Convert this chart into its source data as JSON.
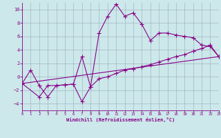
{
  "xlabel": "Windchill (Refroidissement éolien,°C)",
  "xlim": [
    0,
    23
  ],
  "ylim": [
    -5,
    11
  ],
  "yticks": [
    -4,
    -2,
    0,
    2,
    4,
    6,
    8,
    10
  ],
  "xticks": [
    0,
    1,
    2,
    3,
    4,
    5,
    6,
    7,
    8,
    9,
    10,
    11,
    12,
    13,
    14,
    15,
    16,
    17,
    18,
    19,
    20,
    21,
    22,
    23
  ],
  "background_color": "#cce8ea",
  "line_color": "#880088",
  "grid_color": "#99aabb",
  "line1_x": [
    0,
    1,
    2,
    3,
    4,
    5,
    6,
    7,
    8,
    9,
    10,
    11,
    12,
    13,
    14,
    15,
    16,
    17,
    18,
    19,
    20,
    21,
    22,
    23
  ],
  "line1_y": [
    -1.0,
    1.0,
    -1.3,
    -3.0,
    -1.3,
    -1.2,
    -1.1,
    -3.7,
    -1.5,
    6.5,
    9.0,
    10.8,
    9.0,
    9.5,
    7.8,
    5.4,
    6.5,
    6.5,
    6.2,
    6.0,
    5.8,
    4.7,
    4.5,
    3.0
  ],
  "line2_x": [
    0,
    2,
    3,
    4,
    5,
    6,
    7,
    8,
    9,
    10,
    11,
    12,
    13,
    14,
    15,
    16,
    17,
    18,
    19,
    20,
    21,
    22,
    23
  ],
  "line2_y": [
    -1.0,
    -3.0,
    -1.3,
    -1.3,
    -1.2,
    -1.1,
    3.0,
    -1.5,
    -0.3,
    0.0,
    0.5,
    1.0,
    1.2,
    1.5,
    1.8,
    2.2,
    2.6,
    3.0,
    3.3,
    3.8,
    4.2,
    4.7,
    3.0
  ],
  "line3_x": [
    0,
    23
  ],
  "line3_y": [
    -1.0,
    3.0
  ]
}
